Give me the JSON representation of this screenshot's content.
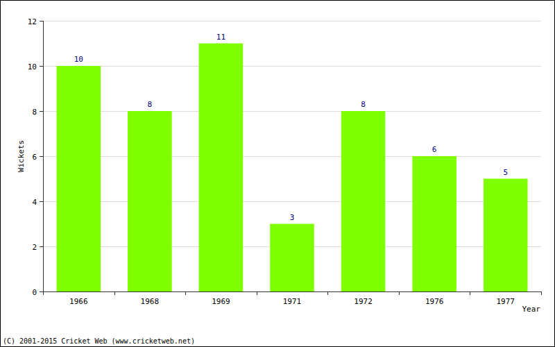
{
  "chart_data": {
    "type": "bar",
    "categories": [
      "1966",
      "1968",
      "1969",
      "1971",
      "1972",
      "1976",
      "1977"
    ],
    "values": [
      10,
      8,
      11,
      3,
      8,
      6,
      5
    ],
    "color": "#80ff00",
    "ylim": [
      0,
      12
    ],
    "yticks": [
      0,
      2,
      4,
      6,
      8,
      10,
      12
    ],
    "grid": true,
    "data_labels": true,
    "x_label": "Year",
    "y_label": "Wickets",
    "annotations": [
      "(C) 2001-2015 Cricket Web (www.cricketweb.net)"
    ]
  }
}
